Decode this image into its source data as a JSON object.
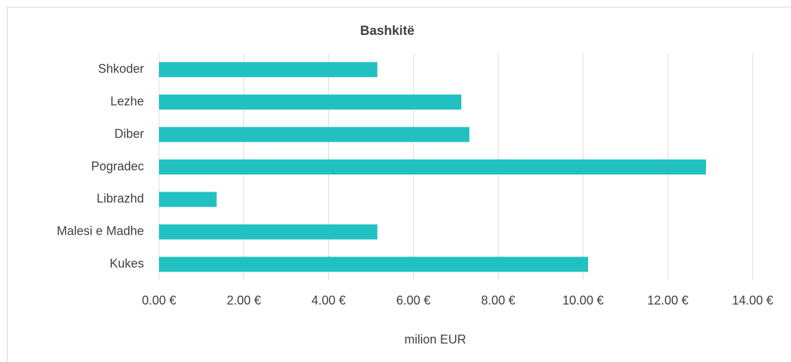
{
  "chart_data": {
    "type": "bar",
    "orientation": "horizontal",
    "title": "Bashkitë",
    "x_label": "milion EUR",
    "categories": [
      "Shkoder",
      "Lezhe",
      "Diber",
      "Pogradec",
      "Librazhd",
      "Malesi e Madhe",
      "Kukes"
    ],
    "values": [
      5.15,
      7.13,
      7.32,
      12.9,
      1.36,
      5.15,
      10.12
    ],
    "color": "#22c1c1",
    "xlim": [
      0,
      14
    ],
    "xticks": [
      {
        "value": 0,
        "label": "0.00 €"
      },
      {
        "value": 2,
        "label": "2.00 €"
      },
      {
        "value": 4,
        "label": "4.00 €"
      },
      {
        "value": 6,
        "label": "6.00 €"
      },
      {
        "value": 8,
        "label": "8.00 €"
      },
      {
        "value": 10,
        "label": "10.00 €"
      },
      {
        "value": 12,
        "label": "12.00 €"
      },
      {
        "value": 14,
        "label": "14.00 €"
      }
    ],
    "grid": true
  }
}
